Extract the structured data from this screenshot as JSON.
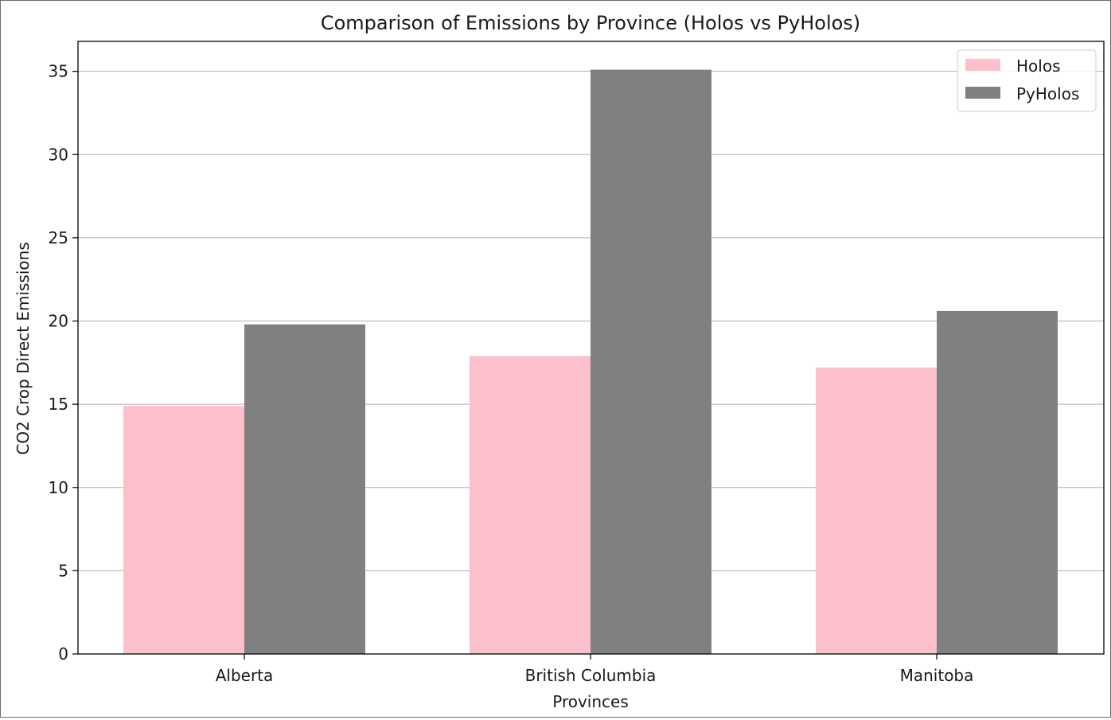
{
  "chart_data": {
    "type": "bar",
    "title": "Comparison of Emissions by Province (Holos vs PyHolos)",
    "xlabel": "Provinces",
    "ylabel": "CO2 Crop Direct Emissions",
    "categories": [
      "Alberta",
      "British Columbia",
      "Manitoba"
    ],
    "series": [
      {
        "name": "Holos",
        "values": [
          14.9,
          17.9,
          17.2
        ],
        "color": "#fbc0cb"
      },
      {
        "name": "PyHolos",
        "values": [
          19.8,
          35.1,
          20.6
        ],
        "color": "#808080"
      }
    ],
    "ylim": [
      0,
      36.8
    ],
    "yticks": [
      0,
      5,
      10,
      15,
      20,
      25,
      30,
      35
    ],
    "grid": "y",
    "legend_position": "top-right"
  }
}
